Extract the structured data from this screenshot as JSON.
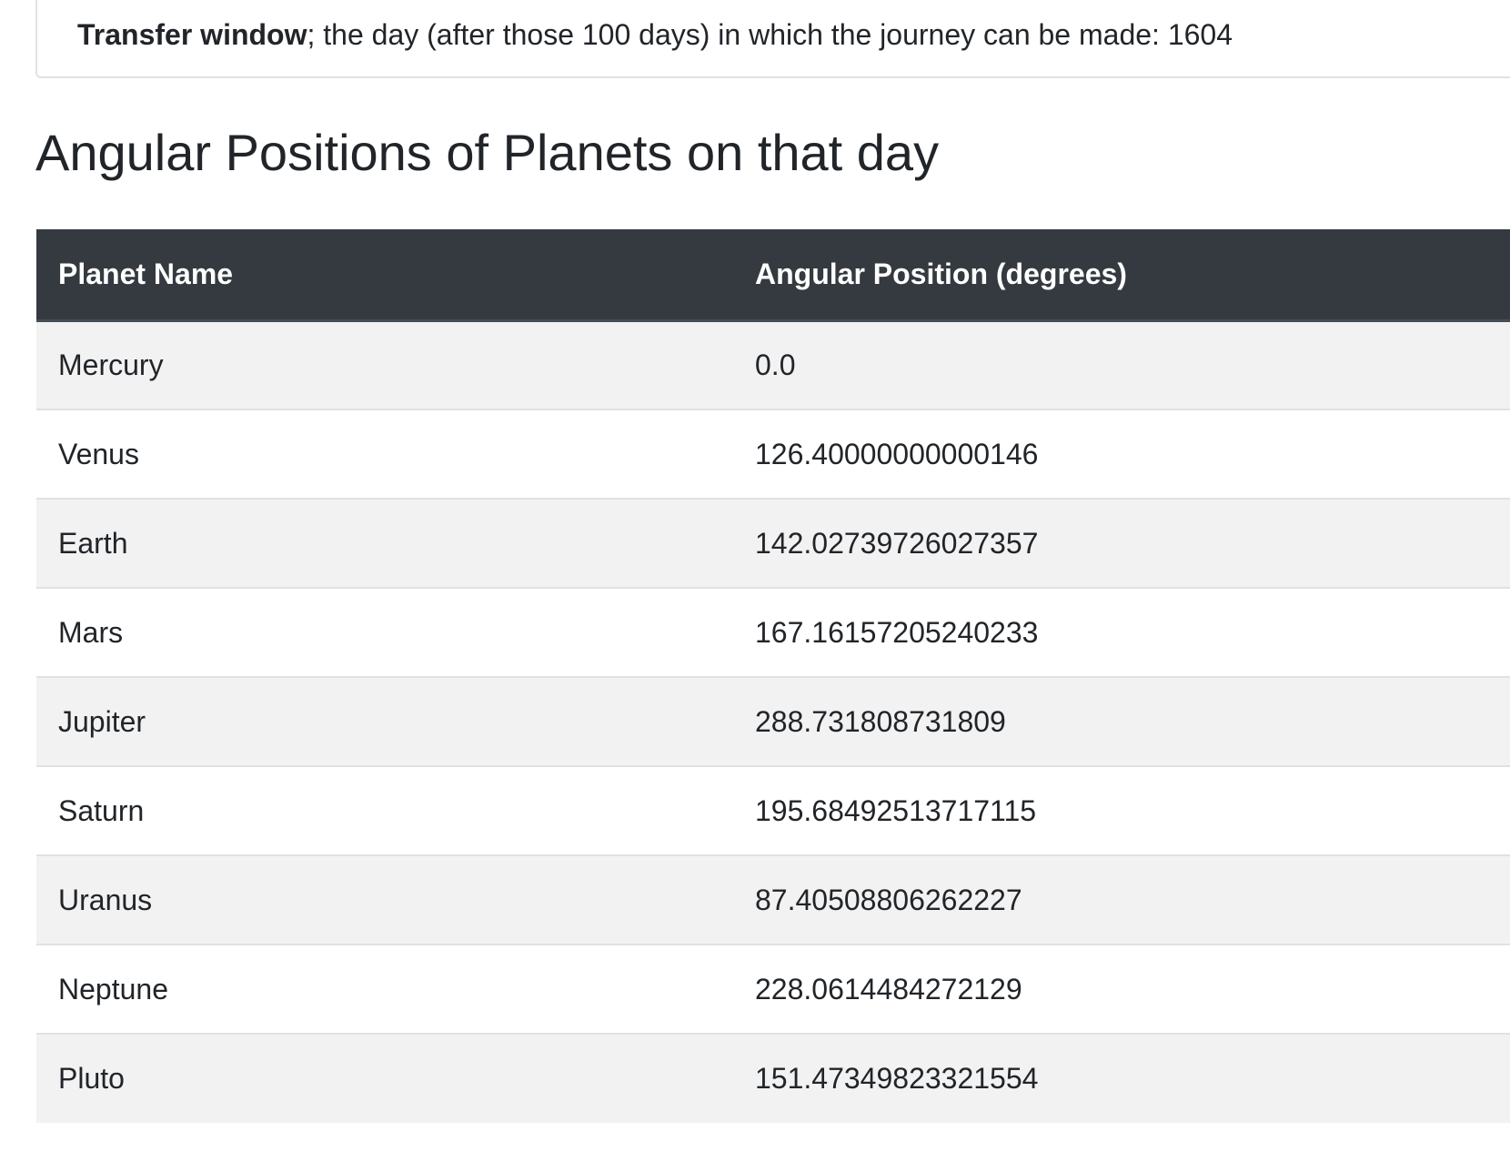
{
  "transfer": {
    "label": "Transfer window",
    "text": "; the day (after those 100 days) in which the journey can be made: 1604"
  },
  "title": "Angular Positions of Planets on that day",
  "table": {
    "headers": [
      "Planet Name",
      "Angular Position (degrees)"
    ],
    "rows": [
      {
        "planet": "Mercury",
        "position": "0.0"
      },
      {
        "planet": "Venus",
        "position": "126.40000000000146"
      },
      {
        "planet": "Earth",
        "position": "142.02739726027357"
      },
      {
        "planet": "Mars",
        "position": "167.16157205240233"
      },
      {
        "planet": "Jupiter",
        "position": "288.731808731809"
      },
      {
        "planet": "Saturn",
        "position": "195.68492513717115"
      },
      {
        "planet": "Uranus",
        "position": "87.40508806262227"
      },
      {
        "planet": "Neptune",
        "position": "228.0614484272129"
      },
      {
        "planet": "Pluto",
        "position": "151.47349823321554"
      }
    ]
  },
  "colors": {
    "header_bg": "#343a40",
    "stripe_bg": "#f2f2f2",
    "text": "#212529"
  }
}
